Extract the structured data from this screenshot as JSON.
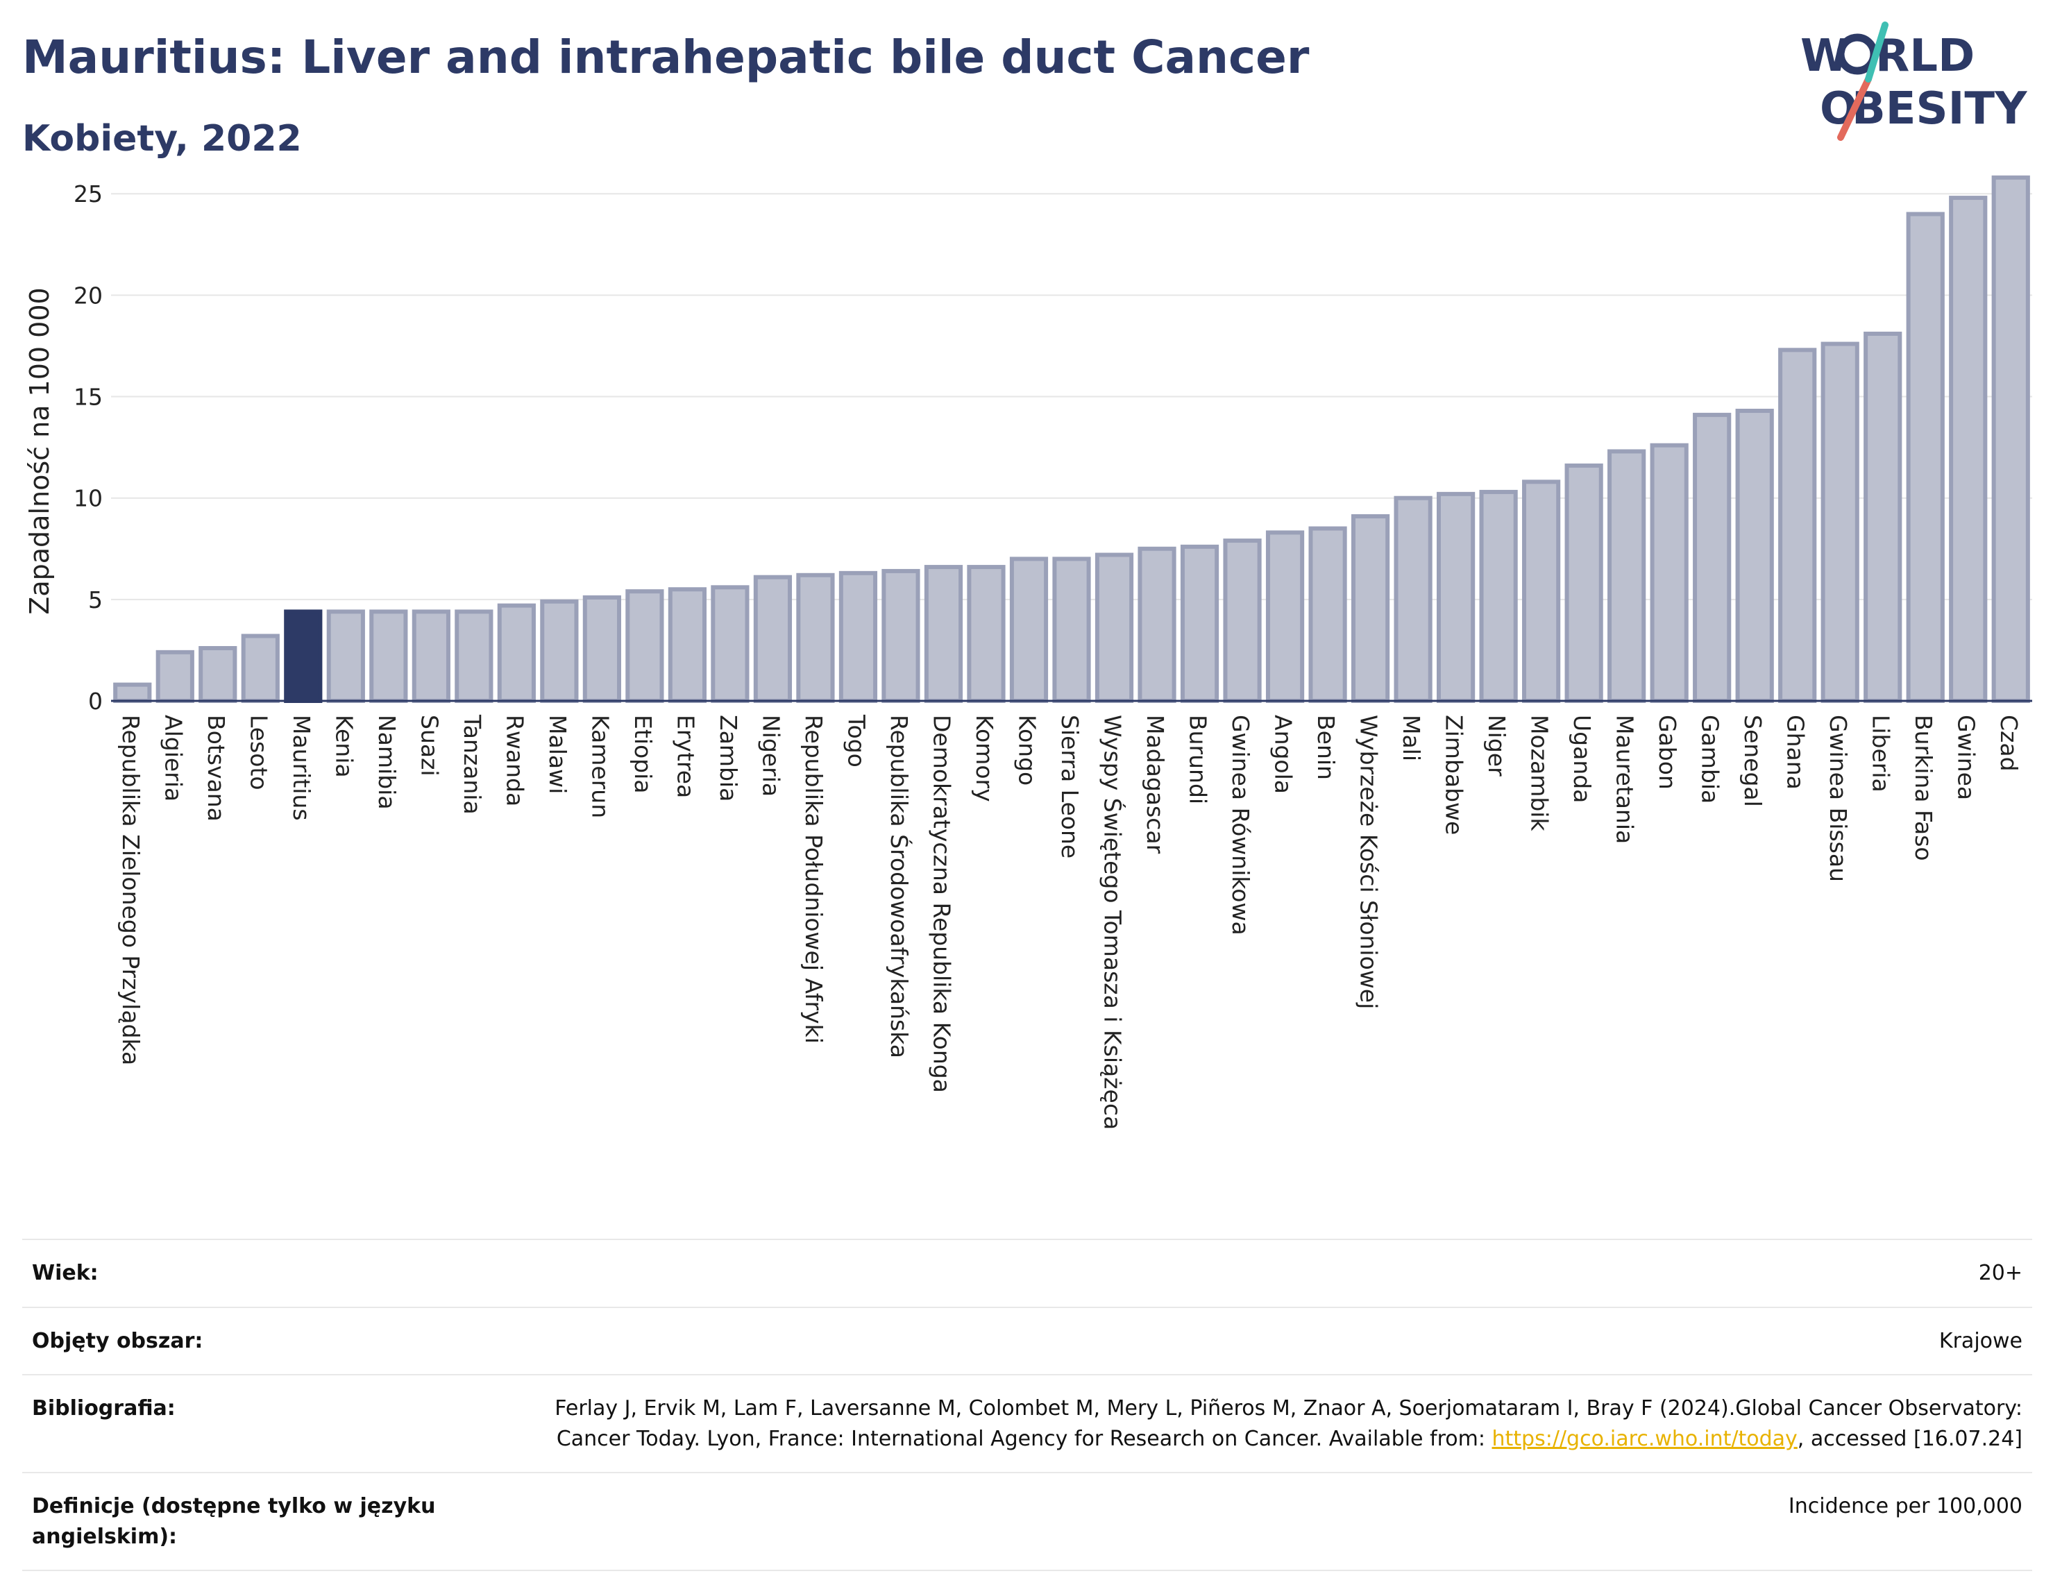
{
  "header": {
    "title": "Mauritius: Liver and intrahepatic bile duct Cancer",
    "subtitle": "Kobiety, 2022"
  },
  "logo": {
    "line1": "W",
    "line1b": "RLD",
    "line2": "O",
    "line2b": "BESITY",
    "accent_teal": "#3fbfb3",
    "accent_red": "#e36a5c"
  },
  "chart_data": {
    "type": "bar",
    "ylabel": "Zapadalność na 100 000",
    "ylim": [
      0,
      26
    ],
    "yticks": [
      0,
      5,
      10,
      15,
      20,
      25
    ],
    "grid": true,
    "highlight": "Mauritius",
    "colors": {
      "bar": "#bcc0cf",
      "bar_edge": "#9aa0b8",
      "highlight": "#2d3a66",
      "grid": "#e6e6e6"
    },
    "categories": [
      "Republika Zielonego Przylądka",
      "Algieria",
      "Botsvana",
      "Lesoto",
      "Mauritius",
      "Kenia",
      "Namibia",
      "Suazi",
      "Tanzania",
      "Rwanda",
      "Malawi",
      "Kamerun",
      "Etiopia",
      "Erytrea",
      "Zambia",
      "Nigeria",
      "Republika Południowej Afryki",
      "Togo",
      "Republika Środowoafrykańska",
      "Demokratyczna Republika Konga",
      "Komory",
      "Kongo",
      "Sierra Leone",
      "Wyspy Świętego Tomasza i Książęca",
      "Madagascar",
      "Burundi",
      "Gwinea Równikowa",
      "Angola",
      "Benin",
      "Wybrzeże Kości Słoniowej",
      "Mali",
      "Zimbabwe",
      "Niger",
      "Mozambik",
      "Uganda",
      "Mauretania",
      "Gabon",
      "Gambia",
      "Senegal",
      "Ghana",
      "Gwinea Bissau",
      "Liberia",
      "Burkina Faso",
      "Gwinea",
      "Czad"
    ],
    "values": [
      0.8,
      2.4,
      2.6,
      3.2,
      4.4,
      4.4,
      4.4,
      4.4,
      4.4,
      4.7,
      4.9,
      5.1,
      5.4,
      5.5,
      5.6,
      6.1,
      6.2,
      6.3,
      6.4,
      6.6,
      6.6,
      7.0,
      7.0,
      7.2,
      7.5,
      7.6,
      7.9,
      8.3,
      8.5,
      9.1,
      10.0,
      10.2,
      10.3,
      10.8,
      11.6,
      12.3,
      12.6,
      14.1,
      14.3,
      17.3,
      17.6,
      18.1,
      24.0,
      24.8,
      25.8
    ]
  },
  "info": {
    "rows": [
      {
        "key": "Wiek:",
        "value": "20+"
      },
      {
        "key": "Objęty obszar:",
        "value": "Krajowe"
      },
      {
        "key": "Bibliografia:",
        "value_pre": "Ferlay J, Ervik M, Lam F, Laversanne M, Colombet M, Mery L, Piñeros M, Znaor A, Soerjomataram I, Bray F (2024).Global Cancer Observatory: Cancer Today. Lyon, France: International Agency for Research on Cancer. Available from: ",
        "link": "https://gco.iarc.who.int/today",
        "value_post": ", accessed [16.07.24]"
      },
      {
        "key": "Definicje (dostępne tylko w języku angielskim):",
        "value": "Incidence per 100,000"
      }
    ]
  }
}
